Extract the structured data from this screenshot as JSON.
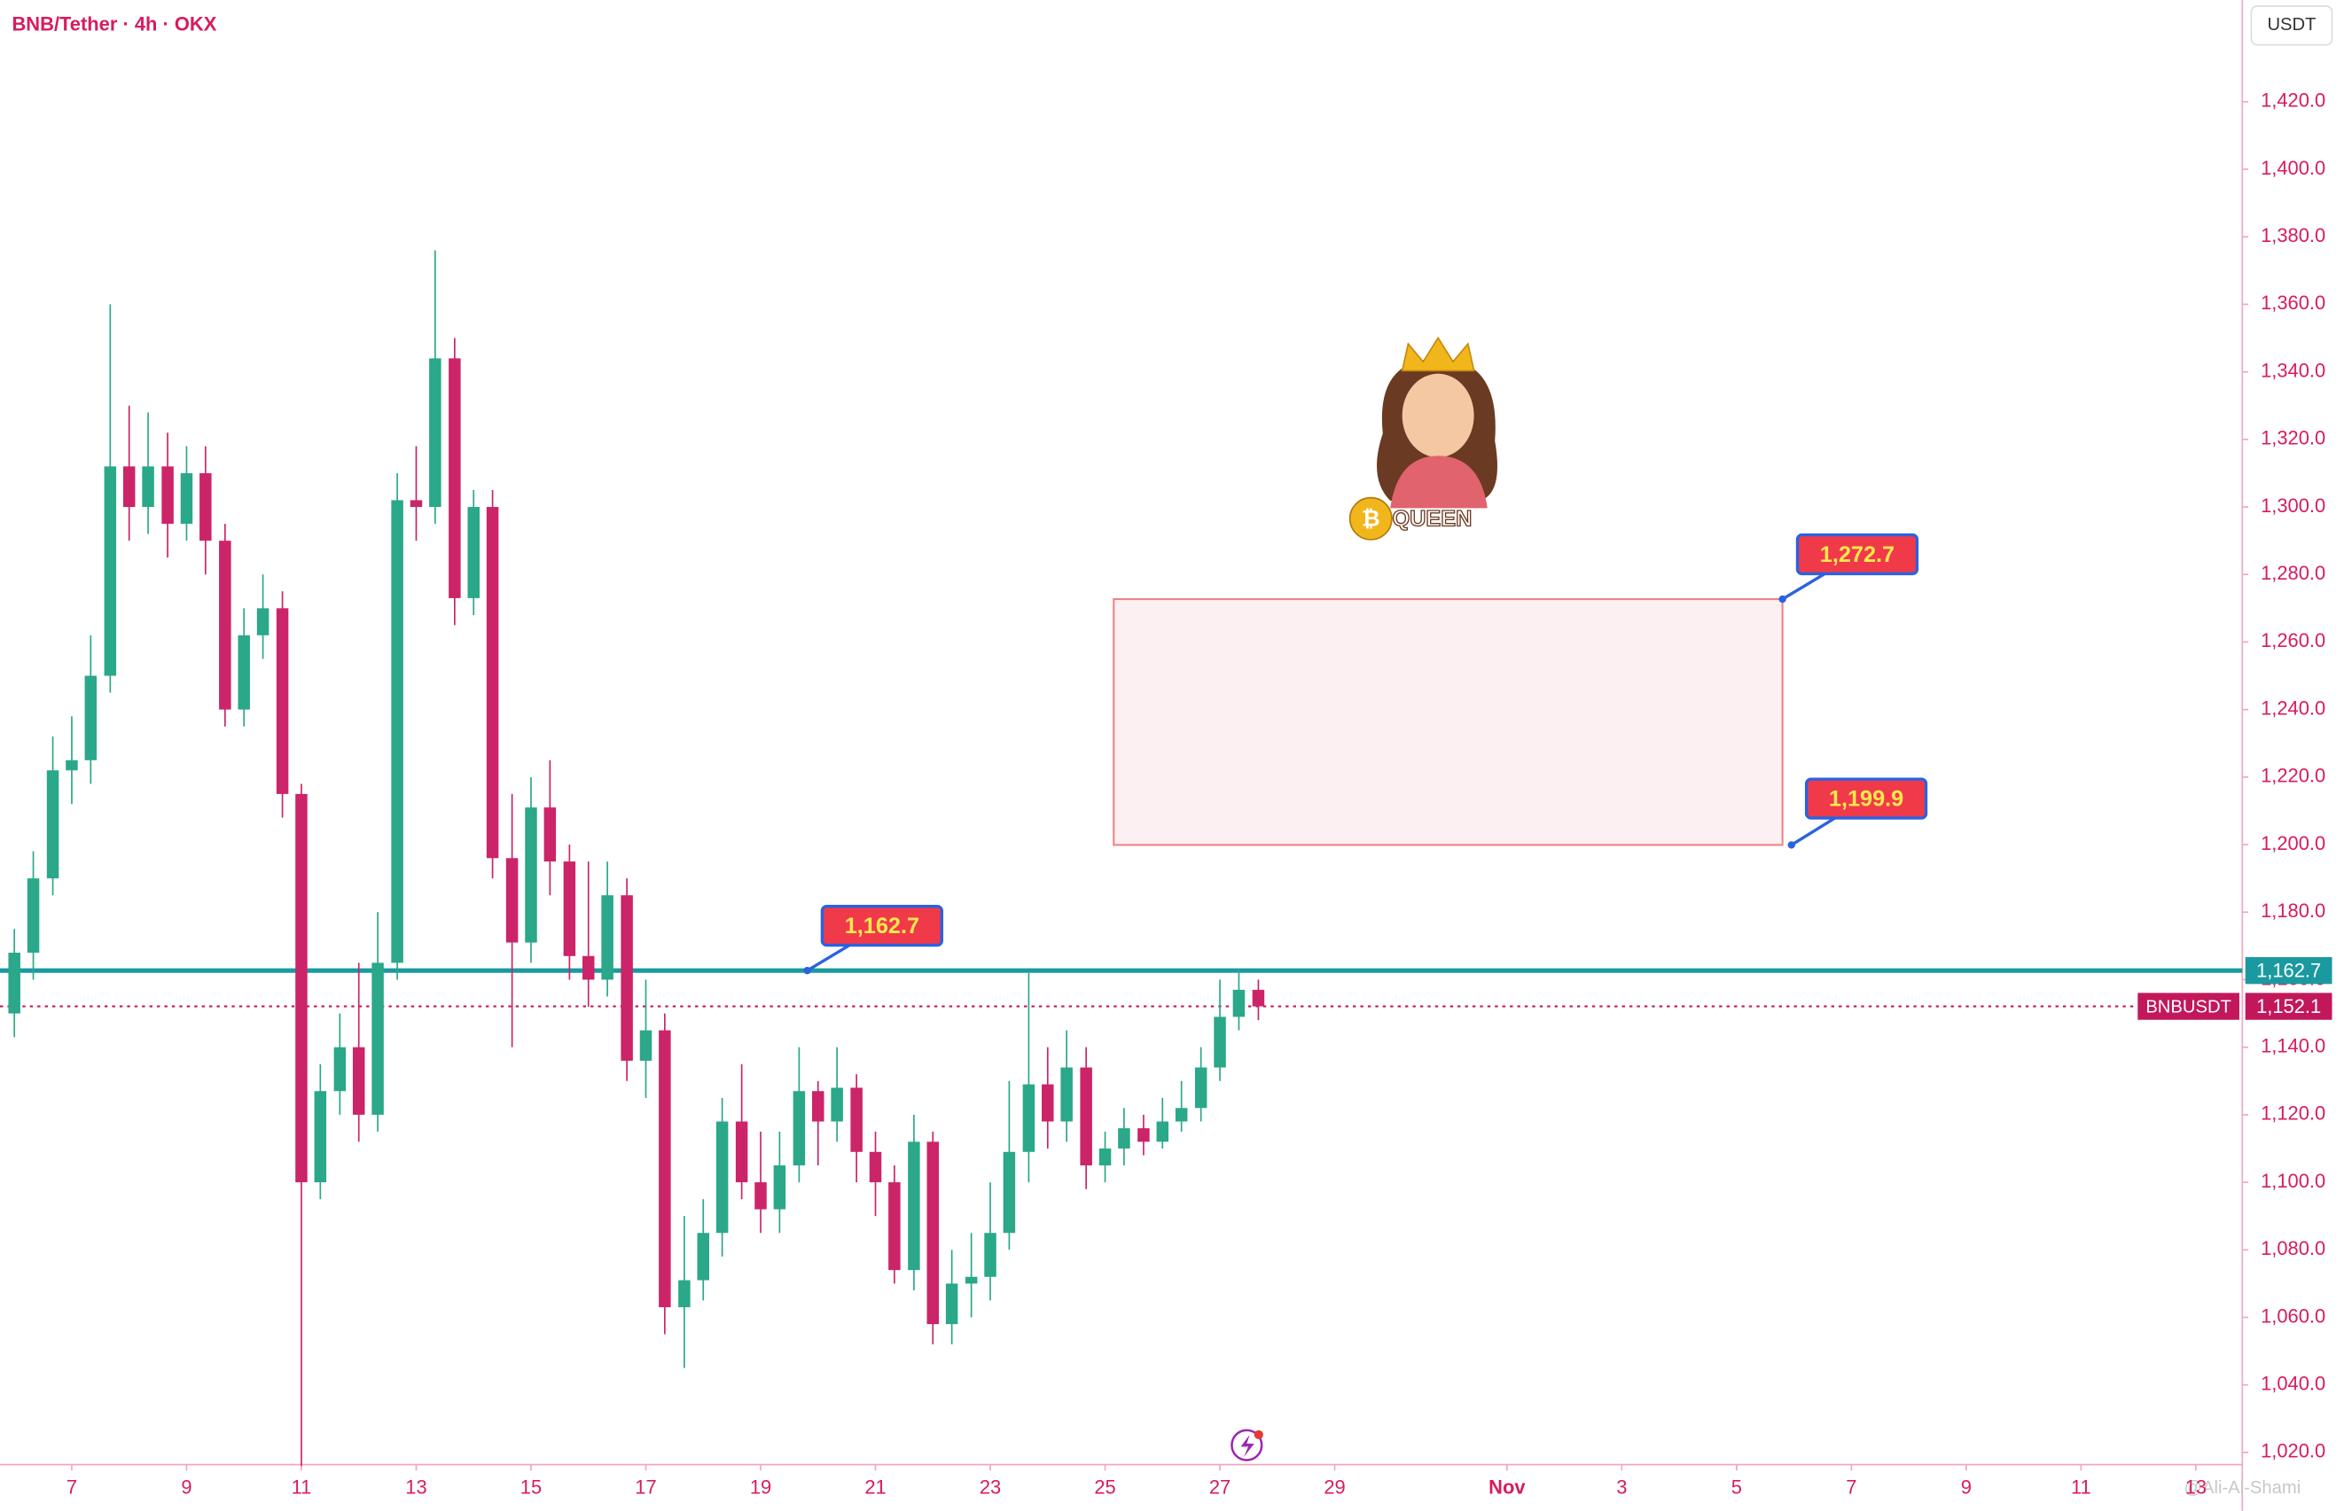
{
  "chart_data": {
    "type": "candlestick",
    "title": "BNB/Tether · 4h · OKX",
    "currency": "USDT",
    "up_color": "#2aa889",
    "down_color": "#cc2468",
    "x": [
      6,
      6.33,
      6.67,
      7,
      7.33,
      7.67,
      8,
      8.33,
      8.67,
      9,
      9.33,
      9.67,
      10,
      10.33,
      10.67,
      11,
      11.33,
      11.67,
      12,
      12.33,
      12.67,
      13,
      13.33,
      13.67,
      14,
      14.33,
      14.67,
      15,
      15.33,
      15.67,
      16,
      16.33,
      16.67,
      17,
      17.33,
      17.67,
      18,
      18.33,
      18.67,
      19,
      19.33,
      19.67,
      20,
      20.33,
      20.67,
      21,
      21.33,
      21.67,
      22,
      22.33,
      22.67,
      23,
      23.33,
      23.67,
      24,
      24.33,
      24.67,
      25,
      25.33,
      25.67,
      26,
      26.33,
      26.67,
      27,
      27.33,
      27.67
    ],
    "open": [
      1150,
      1168,
      1190,
      1222,
      1225,
      1250,
      1312,
      1300,
      1312,
      1295,
      1310,
      1290,
      1240,
      1262,
      1270,
      1215,
      1100,
      1127,
      1140,
      1120,
      1165,
      1302,
      1300,
      1344,
      1273,
      1300,
      1196,
      1171,
      1211,
      1195,
      1167,
      1160,
      1185,
      1136,
      1145,
      1063,
      1071,
      1085,
      1118,
      1100,
      1092,
      1105,
      1127,
      1118,
      1128,
      1109,
      1100,
      1074,
      1112,
      1058,
      1070,
      1072,
      1085,
      1109,
      1129,
      1118,
      1134,
      1105,
      1110,
      1116,
      1112,
      1118,
      1122,
      1134,
      1149,
      1157
    ],
    "high": [
      1175,
      1198,
      1232,
      1238,
      1262,
      1360,
      1330,
      1328,
      1322,
      1318,
      1318,
      1295,
      1270,
      1280,
      1275,
      1218,
      1135,
      1150,
      1165,
      1180,
      1310,
      1318,
      1376,
      1350,
      1305,
      1305,
      1215,
      1220,
      1225,
      1200,
      1195,
      1195,
      1190,
      1160,
      1150,
      1090,
      1095,
      1125,
      1135,
      1115,
      1115,
      1140,
      1130,
      1140,
      1132,
      1115,
      1105,
      1120,
      1115,
      1080,
      1085,
      1100,
      1130,
      1162,
      1140,
      1145,
      1140,
      1115,
      1122,
      1120,
      1125,
      1130,
      1140,
      1160,
      1163,
      1160
    ],
    "low": [
      1143,
      1160,
      1185,
      1212,
      1218,
      1245,
      1290,
      1292,
      1285,
      1290,
      1280,
      1235,
      1235,
      1255,
      1208,
      1016,
      1095,
      1120,
      1112,
      1115,
      1160,
      1290,
      1295,
      1265,
      1268,
      1190,
      1140,
      1165,
      1185,
      1160,
      1152,
      1155,
      1130,
      1125,
      1055,
      1045,
      1065,
      1078,
      1095,
      1085,
      1085,
      1100,
      1105,
      1112,
      1100,
      1090,
      1070,
      1068,
      1052,
      1052,
      1060,
      1065,
      1080,
      1100,
      1110,
      1112,
      1098,
      1100,
      1105,
      1108,
      1110,
      1115,
      1118,
      1130,
      1145,
      1148
    ],
    "close": [
      1168,
      1190,
      1222,
      1225,
      1250,
      1312,
      1300,
      1312,
      1295,
      1310,
      1290,
      1240,
      1262,
      1270,
      1215,
      1100,
      1127,
      1140,
      1120,
      1165,
      1302,
      1300,
      1344,
      1273,
      1300,
      1196,
      1171,
      1211,
      1195,
      1167,
      1160,
      1185,
      1136,
      1145,
      1063,
      1071,
      1085,
      1118,
      1100,
      1092,
      1105,
      1127,
      1118,
      1128,
      1109,
      1100,
      1074,
      1112,
      1058,
      1070,
      1072,
      1085,
      1109,
      1129,
      1118,
      1134,
      1105,
      1110,
      1116,
      1112,
      1118,
      1122,
      1134,
      1149,
      1157,
      1152.1
    ],
    "xlim": [
      5.75,
      44.81
    ],
    "xticks": [
      7,
      9,
      11,
      13,
      15,
      17,
      19,
      21,
      23,
      25,
      27,
      29,
      {
        "value": 32,
        "label": "Nov"
      },
      {
        "value": 34,
        "label": "3"
      },
      {
        "value": 36,
        "label": "5"
      },
      {
        "value": 38,
        "label": "7"
      },
      {
        "value": 40,
        "label": "9"
      },
      {
        "value": 42,
        "label": "11"
      },
      {
        "value": 44,
        "label": "13"
      }
    ],
    "ylim": [
      1016.4,
      1450.1
    ],
    "yticks": [
      {
        "value": 1020,
        "label": "1,020.0"
      },
      {
        "value": 1040,
        "label": "1,040.0"
      },
      {
        "value": 1060,
        "label": "1,060.0"
      },
      {
        "value": 1080,
        "label": "1,080.0"
      },
      {
        "value": 1100,
        "label": "1,100.0"
      },
      {
        "value": 1120,
        "label": "1,120.0"
      },
      {
        "value": 1140,
        "label": "1,140.0"
      },
      {
        "value": 1160,
        "label": "1,160.0"
      },
      {
        "value": 1180,
        "label": "1,180.0"
      },
      {
        "value": 1200,
        "label": "1,200.0"
      },
      {
        "value": 1220,
        "label": "1,220.0"
      },
      {
        "value": 1240,
        "label": "1,240.0"
      },
      {
        "value": 1260,
        "label": "1,260.0"
      },
      {
        "value": 1280,
        "label": "1,280.0"
      },
      {
        "value": 1300,
        "label": "1,300.0"
      },
      {
        "value": 1320,
        "label": "1,320.0"
      },
      {
        "value": 1340,
        "label": "1,340.0"
      },
      {
        "value": 1360,
        "label": "1,360.0"
      },
      {
        "value": 1380,
        "label": "1,380.0"
      },
      {
        "value": 1400,
        "label": "1,400.0"
      },
      {
        "value": 1420,
        "label": "1,420.0"
      }
    ],
    "resistance": {
      "value": 1162.7,
      "label": "1,162.7",
      "color": "#1a9aa0"
    },
    "zone": {
      "x": [
        25.15,
        36.8
      ],
      "low": 1199.9,
      "high": 1272.7,
      "low_label": "1,199.9",
      "high_label": "1,272.7"
    },
    "last_price": {
      "symbol": "BNBUSDT",
      "value": 1152.1,
      "label": "1,152.1",
      "color": "#c2185b"
    },
    "sticker": "QUEEN",
    "watermark": "@Ali-Al-Shami"
  }
}
